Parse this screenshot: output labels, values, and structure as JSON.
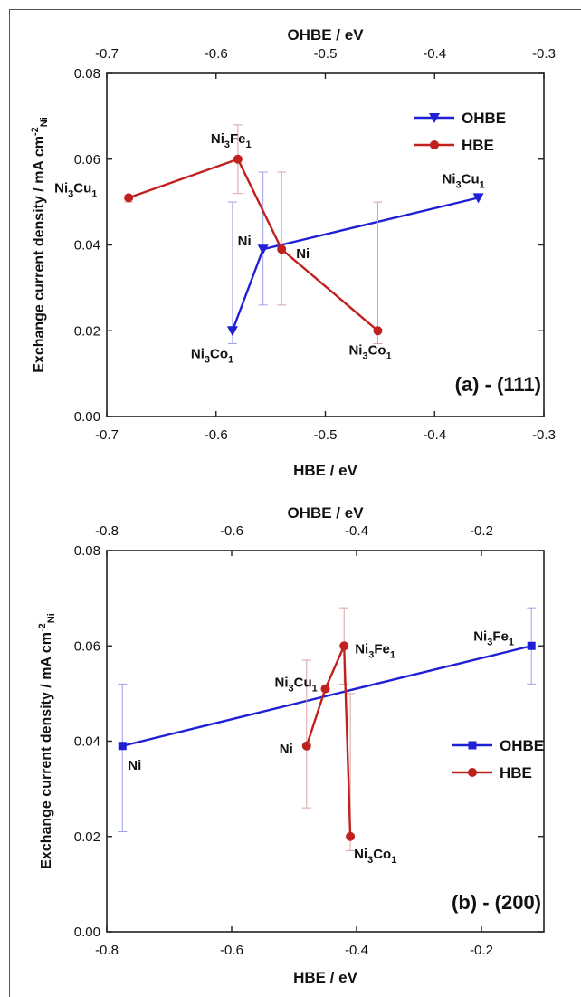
{
  "chart_data": [
    {
      "type": "line",
      "panel_label": "(a) - (111)",
      "xlabel": "HBE / eV",
      "x2label": "OHBE / eV",
      "ylabel": "Exchange current density / mA cm",
      "ylabel_sup": "-2",
      "ylabel_sub": "Ni",
      "xlim": [
        -0.7,
        -0.3
      ],
      "x2lim": [
        -0.7,
        -0.3
      ],
      "ylim": [
        0,
        0.08
      ],
      "xticks": [
        "-0.7",
        "-0.6",
        "-0.5",
        "-0.4",
        "-0.3"
      ],
      "x2ticks": [
        "-0.7",
        "-0.6",
        "-0.5",
        "-0.4",
        "-0.3"
      ],
      "yticks": [
        "0.00",
        "0.02",
        "0.04",
        "0.06",
        "0.08"
      ],
      "legend_position": "top-right",
      "series": [
        {
          "name": "OHBE",
          "axis": "top",
          "color": "#1f1fd6",
          "marker": "triangle-down",
          "points": [
            {
              "x": -0.585,
              "y": 0.02,
              "err_low": 0.003,
              "err_high": 0.03,
              "label": "Ni3Co1"
            },
            {
              "x": -0.557,
              "y": 0.039,
              "err_low": 0.013,
              "err_high": 0.018,
              "label": "Ni"
            },
            {
              "x": -0.36,
              "y": 0.051,
              "err_low": 0.0,
              "err_high": 0.0,
              "label": "Ni3Cu1"
            }
          ]
        },
        {
          "name": "HBE",
          "axis": "bottom",
          "color": "#c0201e",
          "marker": "circle",
          "points": [
            {
              "x": -0.68,
              "y": 0.051,
              "err_low": 0.001,
              "err_high": 0.0,
              "label": "Ni3Cu1"
            },
            {
              "x": -0.58,
              "y": 0.06,
              "err_low": 0.008,
              "err_high": 0.008,
              "label": "Ni3Fe1"
            },
            {
              "x": -0.54,
              "y": 0.039,
              "err_low": 0.013,
              "err_high": 0.018,
              "label": "Ni"
            },
            {
              "x": -0.452,
              "y": 0.02,
              "err_low": 0.003,
              "err_high": 0.03,
              "label": "Ni3Co1"
            }
          ]
        }
      ]
    },
    {
      "type": "line",
      "panel_label": "(b) - (200)",
      "xlabel": "HBE / eV",
      "x2label": "OHBE / eV",
      "ylabel": "Exchange current density / mA cm",
      "ylabel_sup": "-2",
      "ylabel_sub": "Ni",
      "xlim": [
        -0.8,
        -0.1
      ],
      "x2lim": [
        -0.8,
        -0.1
      ],
      "ylim": [
        0,
        0.08
      ],
      "xticks": [
        "-0.8",
        "-0.6",
        "-0.4",
        "-0.2"
      ],
      "x2ticks": [
        "-0.8",
        "-0.6",
        "-0.4",
        "-0.2"
      ],
      "yticks": [
        "0.00",
        "0.02",
        "0.04",
        "0.06",
        "0.08"
      ],
      "legend_position": "right",
      "series": [
        {
          "name": "OHBE",
          "axis": "top",
          "color": "#1f1fd6",
          "marker": "square",
          "points": [
            {
              "x": -0.775,
              "y": 0.039,
              "err_low": 0.018,
              "err_high": 0.013,
              "label": "Ni"
            },
            {
              "x": -0.12,
              "y": 0.06,
              "err_low": 0.008,
              "err_high": 0.008,
              "label": "Ni3Fe1"
            }
          ]
        },
        {
          "name": "HBE",
          "axis": "bottom",
          "color": "#c0201e",
          "marker": "circle",
          "points": [
            {
              "x": -0.48,
              "y": 0.039,
              "err_low": 0.013,
              "err_high": 0.018,
              "label": "Ni"
            },
            {
              "x": -0.45,
              "y": 0.051,
              "err_low": 0.0,
              "err_high": 0.0,
              "label": "Ni3Cu1"
            },
            {
              "x": -0.42,
              "y": 0.06,
              "err_low": 0.008,
              "err_high": 0.008,
              "label": "Ni3Fe1"
            },
            {
              "x": -0.41,
              "y": 0.02,
              "err_low": 0.003,
              "err_high": 0.03,
              "label": "Ni3Co1"
            }
          ]
        }
      ]
    }
  ]
}
